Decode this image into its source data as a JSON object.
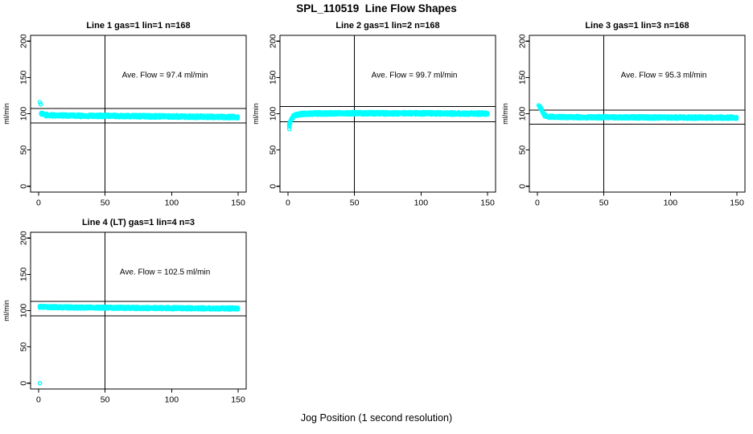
{
  "page": {
    "title": "SPL_110519  Line Flow Shapes",
    "xlabel": "Jog Position (1 second resolution)",
    "background": "#FFFFFF"
  },
  "style": {
    "point_color": "#00FFFF",
    "axis_color": "#000000",
    "marker": "open-circle",
    "marker_radius": 2.1
  },
  "chart_data": [
    {
      "type": "scatter",
      "title": "Line 1 gas=1 lin=1 n=168",
      "line": 1,
      "gas": 1,
      "lin": 1,
      "n": 168,
      "annotation": "Ave. Flow =  97.4  ml/min",
      "ave_flow_ml_min": 97.4,
      "ylabel": "ml/min",
      "xlim": [
        0,
        150
      ],
      "ylim": [
        0,
        200
      ],
      "xticks": [
        0,
        50,
        100,
        150
      ],
      "yticks": [
        0,
        50,
        100,
        150,
        200
      ],
      "vline_x": 50,
      "hlines": [
        107,
        87
      ],
      "outlier_points": [
        [
          1,
          116
        ],
        [
          1.6,
          113
        ]
      ],
      "band": {
        "x_step": 0.6,
        "thickness": 3.4,
        "centerline": [
          [
            2,
            100.8
          ],
          [
            3,
            99.2
          ],
          [
            5,
            98.2
          ],
          [
            10,
            97.6
          ],
          [
            30,
            97.2
          ],
          [
            60,
            96.8
          ],
          [
            100,
            96.2
          ],
          [
            150,
            95.3
          ]
        ]
      }
    },
    {
      "type": "scatter",
      "title": "Line 2 gas=1 lin=2 n=168",
      "line": 2,
      "gas": 1,
      "lin": 2,
      "n": 168,
      "annotation": "Ave. Flow =  99.7  ml/min",
      "ave_flow_ml_min": 99.7,
      "ylabel": "ml/min",
      "xlim": [
        0,
        150
      ],
      "ylim": [
        0,
        200
      ],
      "xticks": [
        0,
        50,
        100,
        150
      ],
      "yticks": [
        0,
        50,
        100,
        150,
        200
      ],
      "vline_x": 50,
      "hlines": [
        110,
        89
      ],
      "outlier_points": [
        [
          1,
          79
        ]
      ],
      "band": {
        "x_step": 0.6,
        "thickness": 3.4,
        "centerline": [
          [
            1,
            84
          ],
          [
            2,
            89
          ],
          [
            3,
            93.5
          ],
          [
            4,
            96.2
          ],
          [
            6,
            98.3
          ],
          [
            10,
            99.6
          ],
          [
            20,
            100.3
          ],
          [
            50,
            100.6
          ],
          [
            100,
            100.6
          ],
          [
            150,
            100.2
          ]
        ]
      }
    },
    {
      "type": "scatter",
      "title": "Line 3 gas=1 lin=3 n=168",
      "line": 3,
      "gas": 1,
      "lin": 3,
      "n": 168,
      "annotation": "Ave. Flow =  95.3  ml/min",
      "ave_flow_ml_min": 95.3,
      "ylabel": "ml/min",
      "xlim": [
        0,
        150
      ],
      "ylim": [
        0,
        200
      ],
      "xticks": [
        0,
        50,
        100,
        150
      ],
      "yticks": [
        0,
        50,
        100,
        150,
        200
      ],
      "vline_x": 50,
      "hlines": [
        105,
        85.5
      ],
      "outlier_points": [
        [
          1,
          111.5
        ],
        [
          1.8,
          110.5
        ]
      ],
      "band": {
        "x_step": 0.6,
        "thickness": 3.2,
        "centerline": [
          [
            2,
            109.5
          ],
          [
            3,
            105.5
          ],
          [
            4,
            101.5
          ],
          [
            5,
            98.8
          ],
          [
            6,
            97
          ],
          [
            8,
            95.8
          ],
          [
            20,
            95.2
          ],
          [
            50,
            95
          ],
          [
            100,
            94.8
          ],
          [
            150,
            94.5
          ]
        ]
      }
    },
    {
      "type": "scatter",
      "title": "Line 4 (LT) gas=1 lin=4 n=3",
      "line": 4,
      "gas": 1,
      "lin": 4,
      "n": 3,
      "annotation": "Ave. Flow =  102.5  ml/min",
      "ave_flow_ml_min": 102.5,
      "ylabel": "ml/min",
      "xlim": [
        0,
        150
      ],
      "ylim": [
        0,
        200
      ],
      "xticks": [
        0,
        50,
        100,
        150
      ],
      "yticks": [
        0,
        50,
        100,
        150,
        200
      ],
      "vline_x": 50,
      "hlines": [
        113,
        93
      ],
      "outlier_points": [
        [
          1,
          0
        ]
      ],
      "band": {
        "x_step": 0.6,
        "thickness": 2.8,
        "centerline": [
          [
            1,
            105.2
          ],
          [
            10,
            104.8
          ],
          [
            30,
            104.3
          ],
          [
            60,
            103.9
          ],
          [
            100,
            103.4
          ],
          [
            150,
            103
          ]
        ]
      }
    }
  ]
}
